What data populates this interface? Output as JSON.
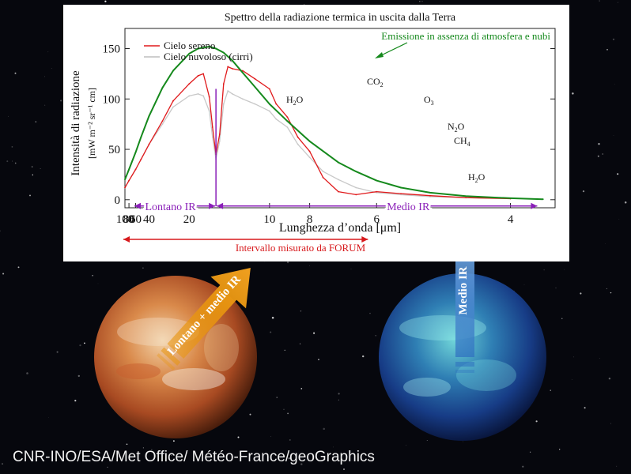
{
  "chart_data": {
    "type": "line",
    "title": "Spettro della radiazione termica in uscita dalla Terra",
    "xlabel": "Lunghezza d’onda [μm]",
    "ylabel": "Intensità di radiazione",
    "ylabel_units": "[mW m⁻² sr⁻¹ cm]",
    "x_scale": "reciprocal",
    "xlim": [
      100,
      3.6
    ],
    "ylim": [
      -8,
      170
    ],
    "x_ticks": [
      100,
      80,
      60,
      40,
      20,
      10,
      8,
      6,
      4
    ],
    "y_ticks": [
      0,
      50,
      100,
      150
    ],
    "grid": false,
    "legend_position": "top-left",
    "series": [
      {
        "name": "Cielo sereno",
        "color": "#e0191b",
        "x": [
          100,
          80,
          60,
          50,
          40,
          30,
          25,
          20,
          18,
          17,
          16,
          15.5,
          15,
          14.5,
          14,
          13.5,
          13,
          12,
          11,
          10,
          9.6,
          9,
          8.5,
          8,
          7.5,
          7,
          6.5,
          6,
          5.5,
          5,
          4.5,
          4
        ],
        "y": [
          12,
          19,
          30,
          40,
          55,
          78,
          98,
          115,
          123,
          125,
          102,
          72,
          45,
          65,
          115,
          132,
          130,
          128,
          120,
          110,
          95,
          82,
          62,
          48,
          22,
          8,
          5,
          8,
          6,
          4,
          2,
          1
        ]
      },
      {
        "name": "Cielo nuvoloso (cirri)",
        "color": "#c8c8c8",
        "x": [
          100,
          80,
          60,
          50,
          40,
          30,
          25,
          20,
          18,
          17,
          16,
          15.5,
          15,
          14.5,
          14,
          13.5,
          13,
          12,
          11,
          10,
          9.6,
          9,
          8.5,
          8,
          7.5,
          7,
          6.5,
          6,
          5.5,
          5,
          4.5,
          4
        ],
        "y": [
          12,
          19,
          30,
          40,
          55,
          75,
          92,
          103,
          105,
          103,
          88,
          62,
          40,
          58,
          95,
          108,
          105,
          100,
          95,
          88,
          80,
          72,
          55,
          42,
          28,
          20,
          12,
          7,
          5,
          3,
          2,
          1
        ]
      },
      {
        "name": "Emissione in assenza di atmosfera e nubi",
        "color": "#15891c",
        "x": [
          100,
          80,
          60,
          50,
          40,
          30,
          25,
          20,
          18,
          16,
          15,
          14,
          13,
          12,
          11,
          10,
          9,
          8,
          7,
          6.5,
          6,
          5.5,
          5,
          4.5,
          4,
          3.7
        ],
        "y": [
          20,
          30,
          47,
          62,
          83,
          111,
          128,
          145,
          150,
          152,
          150,
          146,
          138,
          126,
          112,
          95,
          78,
          58,
          37,
          28,
          19,
          12,
          7,
          3.5,
          1.5,
          0.5
        ]
      }
    ],
    "annotations": {
      "green_curve_label": "Emissione in assenza di atmosfera e nubi",
      "molecules": [
        {
          "base": "H",
          "sub": "2",
          "rest": "O"
        },
        {
          "base": "CO",
          "sub": "2",
          "rest": ""
        },
        {
          "base": "O",
          "sub": "3",
          "rest": ""
        },
        {
          "base": "N",
          "sub": "2",
          "rest": "O"
        },
        {
          "base": "CH",
          "sub": "4",
          "rest": ""
        },
        {
          "base": "H",
          "sub": "2",
          "rest": "O"
        }
      ],
      "band_left": "Lontano IR",
      "band_right": "Medio IR",
      "band_boundary_um": 15,
      "band_color": "#8a1fb8",
      "forum_range": "Intervallo misurato da FORUM",
      "forum_range_um": [
        100,
        6.2
      ],
      "forum_color": "#d7191c"
    }
  },
  "arrows": {
    "left_label": "Lontano + medio IR",
    "right_label": "Medio IR",
    "left_color": "#e8950f",
    "right_color": "#4f94dc"
  },
  "credit": "CNR-INO/ESA/Met Office/ Météo-France/geoGraphics"
}
